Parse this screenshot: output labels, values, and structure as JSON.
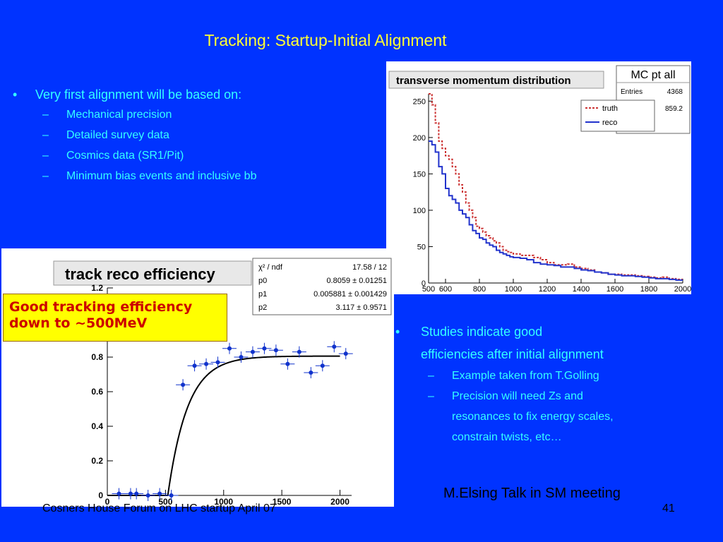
{
  "slide": {
    "title": "Tracking: Startup-Initial Alignment",
    "left_bullets": {
      "main": "Very first alignment will be based on:",
      "subs": [
        "Mechanical precision",
        "Detailed survey data",
        "Cosmics data (SR1/Pit)",
        "Minimum bias events and inclusive bb"
      ]
    },
    "right_bullets": {
      "main_line1": "Studies indicate good",
      "main_line2": "efficiencies after initial alignment",
      "sub1": "Example taken from T.Golling",
      "sub2_lines": [
        "Precision will need Zs and",
        "resonances to fix energy scales,",
        "constrain twists, etc…"
      ]
    },
    "credit": "M.Elsing Talk in SM meeting",
    "footer": "Cosners House Forum on LHC startup April 07",
    "page_number": "41",
    "callout": {
      "line1": "Good tracking efficiency",
      "line2": "down to ~500MeV"
    },
    "colors": {
      "background": "#0033ff",
      "title": "#ffff33",
      "bullets": "#33ffff",
      "callout_bg": "#ffff00",
      "callout_text": "#cc0000"
    }
  },
  "chart_data": [
    {
      "type": "line",
      "title": "transverse momentum distribution",
      "stats_box": {
        "title": "MC pt all",
        "rows": [
          [
            "Entries",
            "4368"
          ],
          [
            "",
            "859.2"
          ]
        ]
      },
      "legend": [
        "truth",
        "reco"
      ],
      "xlim": [
        500,
        2000
      ],
      "ylim": [
        0,
        260
      ],
      "x_ticks": [
        "500",
        "600",
        "800",
        "1000",
        "1200",
        "1400",
        "1600",
        "1800",
        "2000"
      ],
      "y_ticks": [
        "0",
        "50",
        "100",
        "150",
        "200",
        "250"
      ],
      "x": [
        500,
        520,
        540,
        560,
        580,
        600,
        620,
        640,
        660,
        680,
        700,
        720,
        740,
        760,
        780,
        800,
        820,
        840,
        860,
        880,
        900,
        920,
        940,
        960,
        980,
        1000,
        1040,
        1080,
        1120,
        1160,
        1200,
        1240,
        1280,
        1320,
        1360,
        1400,
        1440,
        1480,
        1520,
        1560,
        1600,
        1640,
        1680,
        1720,
        1760,
        1800,
        1840,
        1880,
        1920,
        1960,
        2000
      ],
      "series": [
        {
          "name": "truth",
          "color": "#cc3333",
          "values": [
            260,
            245,
            220,
            195,
            185,
            175,
            170,
            160,
            150,
            135,
            125,
            110,
            100,
            90,
            78,
            75,
            70,
            65,
            62,
            58,
            55,
            50,
            45,
            43,
            42,
            40,
            38,
            38,
            35,
            32,
            28,
            25,
            25,
            26,
            22,
            20,
            18,
            15,
            14,
            12,
            12,
            11,
            11,
            10,
            9,
            8,
            7,
            8,
            6,
            5,
            5
          ]
        },
        {
          "name": "reco",
          "color": "#2233cc",
          "values": [
            195,
            190,
            180,
            160,
            150,
            130,
            120,
            115,
            110,
            100,
            95,
            90,
            80,
            72,
            68,
            62,
            60,
            55,
            52,
            50,
            45,
            42,
            40,
            38,
            36,
            35,
            34,
            32,
            28,
            26,
            25,
            24,
            22,
            22,
            20,
            18,
            17,
            15,
            14,
            12,
            11,
            10,
            10,
            9,
            8,
            7,
            6,
            6,
            5,
            4,
            4
          ]
        }
      ]
    },
    {
      "type": "scatter",
      "title": "track reco efficiency",
      "stats": [
        [
          "χ² / ndf",
          "17.58 / 12"
        ],
        [
          "p0",
          "0.8059 ± 0.01251"
        ],
        [
          "p1",
          "0.005881 ± 0.001429"
        ],
        [
          "p2",
          "3.117 ± 0.9571"
        ]
      ],
      "xlim": [
        0,
        2100
      ],
      "ylim": [
        0,
        1.2
      ],
      "x_ticks": [
        "0",
        "500",
        "1000",
        "1500",
        "2000"
      ],
      "y_ticks": [
        "0",
        "0.2",
        "0.4",
        "0.6",
        "0.8",
        "1.2"
      ],
      "x": [
        100,
        200,
        250,
        350,
        450,
        550,
        650,
        750,
        850,
        950,
        1050,
        1150,
        1250,
        1350,
        1450,
        1550,
        1650,
        1750,
        1850,
        1950,
        2050
      ],
      "y": [
        0.01,
        0.01,
        0.01,
        0.0,
        0.01,
        0.0,
        0.64,
        0.75,
        0.76,
        0.77,
        0.85,
        0.8,
        0.83,
        0.85,
        0.84,
        0.76,
        0.83,
        0.71,
        0.75,
        0.86,
        0.82
      ],
      "series": [
        {
          "name": "",
          "color": "#1133cc"
        }
      ],
      "fit_color": "#000000"
    }
  ]
}
